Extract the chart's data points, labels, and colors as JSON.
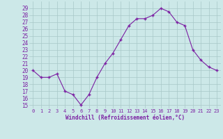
{
  "x": [
    0,
    1,
    2,
    3,
    4,
    5,
    6,
    7,
    8,
    9,
    10,
    11,
    12,
    13,
    14,
    15,
    16,
    17,
    18,
    19,
    20,
    21,
    22,
    23
  ],
  "y": [
    20,
    19,
    19,
    19.5,
    17,
    16.5,
    15,
    16.5,
    19,
    21,
    22.5,
    24.5,
    26.5,
    27.5,
    27.5,
    28,
    29,
    28.5,
    27,
    26.5,
    23,
    21.5,
    20.5,
    20
  ],
  "line_color": "#7b1fa2",
  "marker_color": "#7b1fa2",
  "bg_color": "#cce8e8",
  "grid_color": "#a8c8c8",
  "xlabel": "Windchill (Refroidissement éolien,°C)",
  "ylabel_ticks": [
    15,
    16,
    17,
    18,
    19,
    20,
    21,
    22,
    23,
    24,
    25,
    26,
    27,
    28,
    29
  ],
  "ylim": [
    14.5,
    30
  ],
  "xlim": [
    -0.5,
    23.5
  ],
  "xtick_fontsize": 5,
  "ytick_fontsize": 5.5,
  "xlabel_fontsize": 5.5
}
